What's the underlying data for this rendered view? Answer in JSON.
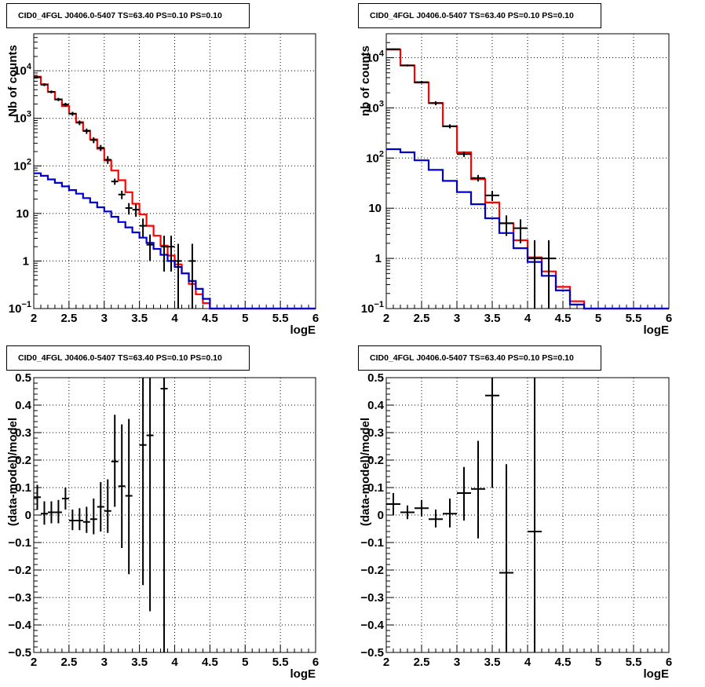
{
  "colors": {
    "data": "#000000",
    "total_model": "#ff0000",
    "background_model": "#0000cc",
    "grid": "#000000"
  },
  "chart_data": [
    {
      "type": "line",
      "title": "CID0_4FGL J0406.0-5407 TS=63.40 PS=0.10 PS=0.10",
      "xlabel": "logE",
      "ylabel": "Nb of counts",
      "xlim": [
        2,
        6
      ],
      "ylim": [
        0.1,
        60000
      ],
      "y_scale": "log",
      "grid": true,
      "x_ticks": [
        "2",
        "2.5",
        "3",
        "3.5",
        "4",
        "4.5",
        "5",
        "5.5",
        "6"
      ],
      "y_ticks": [
        {
          "value": 0.1,
          "label": "10",
          "exp": "−1"
        },
        {
          "value": 1,
          "label": "1",
          "exp": ""
        },
        {
          "value": 10,
          "label": "10",
          "exp": ""
        },
        {
          "value": 100,
          "label": "10",
          "exp": "2"
        },
        {
          "value": 1000,
          "label": "10",
          "exp": "3"
        },
        {
          "value": 10000,
          "label": "10",
          "exp": "4"
        }
      ],
      "bin_edges": [
        2.0,
        2.1,
        2.2,
        2.3,
        2.4,
        2.5,
        2.6,
        2.7,
        2.8,
        2.9,
        3.0,
        3.1,
        3.2,
        3.3,
        3.4,
        3.5,
        3.6,
        3.7,
        3.8,
        3.9,
        4.0,
        4.1,
        4.2,
        4.3,
        4.4,
        4.5,
        4.6,
        4.7,
        4.8,
        4.9,
        5.0,
        5.1,
        5.2,
        5.3,
        5.4,
        5.5,
        5.6,
        5.7,
        5.8,
        5.9,
        6.0
      ],
      "series": [
        {
          "values": [
            7500,
            5200,
            3600,
            2500,
            1800,
            1250,
            830,
            550,
            360,
            230,
            130,
            80,
            50,
            28,
            16,
            9.5,
            5.5,
            3.4,
            2.1,
            1.3,
            0.85,
            0.55,
            0.33,
            0.2,
            0.13,
            0.1,
            0.1,
            0.1,
            0.1,
            0.1,
            0.1,
            0.1,
            0.1,
            0.1,
            0.1,
            0.1,
            0.1,
            0.1,
            0.1,
            0.1
          ]
        },
        {
          "values": [
            70,
            62,
            52,
            44,
            37,
            31,
            26,
            21,
            17,
            13.5,
            11,
            8.5,
            6.6,
            5.1,
            4,
            3.1,
            2.4,
            1.8,
            1.35,
            1,
            0.75,
            0.55,
            0.38,
            0.26,
            0.16,
            0.1,
            0.1,
            0.1,
            0.1,
            0.1,
            0.1,
            0.1,
            0.1,
            0.1,
            0.1,
            0.1,
            0.1,
            0.1,
            0.1,
            0.1
          ]
        }
      ],
      "data_points": [
        {
          "x": 2.05,
          "y": 7300,
          "lo": 6900,
          "hi": 7700
        },
        {
          "x": 2.15,
          "y": 5100,
          "lo": 4750,
          "hi": 5450
        },
        {
          "x": 2.25,
          "y": 3600,
          "lo": 3350,
          "hi": 3850
        },
        {
          "x": 2.35,
          "y": 2500,
          "lo": 2300,
          "hi": 2700
        },
        {
          "x": 2.45,
          "y": 1950,
          "lo": 1780,
          "hi": 2120
        },
        {
          "x": 2.55,
          "y": 1250,
          "lo": 1130,
          "hi": 1370
        },
        {
          "x": 2.65,
          "y": 810,
          "lo": 720,
          "hi": 900
        },
        {
          "x": 2.75,
          "y": 540,
          "lo": 470,
          "hi": 610
        },
        {
          "x": 2.85,
          "y": 350,
          "lo": 300,
          "hi": 400
        },
        {
          "x": 2.95,
          "y": 240,
          "lo": 205,
          "hi": 275
        },
        {
          "x": 3.05,
          "y": 135,
          "lo": 110,
          "hi": 160
        },
        {
          "x": 3.15,
          "y": 47,
          "lo": 40,
          "hi": 54
        },
        {
          "x": 3.25,
          "y": 25,
          "lo": 20,
          "hi": 30
        },
        {
          "x": 3.35,
          "y": 13,
          "lo": 9.5,
          "hi": 16.5
        },
        {
          "x": 3.45,
          "y": 12,
          "lo": 8.5,
          "hi": 15.5
        },
        {
          "x": 3.55,
          "y": 5.5,
          "lo": 3.2,
          "hi": 7.8
        },
        {
          "x": 3.65,
          "y": 2.2,
          "lo": 1,
          "hi": 3.6
        },
        {
          "x": 3.85,
          "y": 2,
          "lo": 0.6,
          "hi": 3.4
        },
        {
          "x": 3.95,
          "y": 2,
          "lo": 0.6,
          "hi": 3.4
        },
        {
          "x": 4.05,
          "y": 1,
          "lo": 0.1,
          "hi": 2.3
        },
        {
          "x": 4.25,
          "y": 1,
          "lo": 0.1,
          "hi": 2.3
        }
      ]
    },
    {
      "type": "line",
      "title": "CID0_4FGL J0406.0-5407 TS=63.40 PS=0.10 PS=0.10",
      "xlabel": "logE",
      "ylabel": "nb of counts",
      "xlim": [
        2,
        6
      ],
      "ylim": [
        0.1,
        30000
      ],
      "y_scale": "log",
      "grid": true,
      "x_ticks": [
        "2",
        "2.5",
        "3",
        "3.5",
        "4",
        "4.5",
        "5",
        "5.5",
        "6"
      ],
      "y_ticks": [
        {
          "value": 0.1,
          "label": "10",
          "exp": "−1"
        },
        {
          "value": 1,
          "label": "1",
          "exp": ""
        },
        {
          "value": 10,
          "label": "10",
          "exp": ""
        },
        {
          "value": 100,
          "label": "10",
          "exp": "2"
        },
        {
          "value": 1000,
          "label": "10",
          "exp": "3"
        },
        {
          "value": 10000,
          "label": "10",
          "exp": "4"
        }
      ],
      "bin_edges": [
        2.0,
        2.2,
        2.4,
        2.6,
        2.8,
        3.0,
        3.2,
        3.4,
        3.6,
        3.8,
        4.0,
        4.2,
        4.4,
        4.6,
        4.8,
        5.0,
        5.2,
        5.4,
        5.6,
        5.8,
        6.0
      ],
      "series": [
        {
          "values": [
            14500,
            7000,
            3200,
            1250,
            430,
            130,
            38,
            13,
            5,
            2.3,
            1.05,
            0.55,
            0.27,
            0.14,
            0.1,
            0.1,
            0.1,
            0.1,
            0.1,
            0.1
          ]
        },
        {
          "values": [
            150,
            130,
            90,
            58,
            35,
            21,
            12,
            6.3,
            3.2,
            1.6,
            0.85,
            0.45,
            0.23,
            0.12,
            0.1,
            0.1,
            0.1,
            0.1,
            0.1,
            0.1
          ]
        }
      ],
      "data_points": [
        {
          "x": 2.1,
          "y": 14800,
          "lo": 14300,
          "hi": 15300
        },
        {
          "x": 2.3,
          "y": 7000,
          "lo": 6700,
          "hi": 7300
        },
        {
          "x": 2.5,
          "y": 3250,
          "lo": 3050,
          "hi": 3450
        },
        {
          "x": 2.7,
          "y": 1240,
          "lo": 1130,
          "hi": 1350
        },
        {
          "x": 2.9,
          "y": 430,
          "lo": 390,
          "hi": 470
        },
        {
          "x": 3.1,
          "y": 120,
          "lo": 105,
          "hi": 135
        },
        {
          "x": 3.3,
          "y": 40,
          "lo": 34,
          "hi": 46
        },
        {
          "x": 3.5,
          "y": 18,
          "lo": 14,
          "hi": 22
        },
        {
          "x": 3.7,
          "y": 5,
          "lo": 2.8,
          "hi": 7.2
        },
        {
          "x": 3.9,
          "y": 4,
          "lo": 2,
          "hi": 6
        },
        {
          "x": 4.1,
          "y": 1,
          "lo": 0.1,
          "hi": 2.3
        },
        {
          "x": 4.3,
          "y": 1,
          "lo": 0.1,
          "hi": 2.3
        }
      ]
    },
    {
      "type": "scatter",
      "title": "CID0_4FGL J0406.0-5407 TS=63.40 PS=0.10 PS=0.10",
      "xlabel": "logE",
      "ylabel": "(data-model)/model",
      "xlim": [
        2,
        6
      ],
      "ylim": [
        -0.5,
        0.5
      ],
      "y_scale": "linear",
      "grid": true,
      "x_ticks": [
        "2",
        "2.5",
        "3",
        "3.5",
        "4",
        "4.5",
        "5",
        "5.5",
        "6"
      ],
      "y_ticks": [
        "−0.5",
        "−0.4",
        "−0.3",
        "−0.2",
        "−0.1",
        "0",
        "0.1",
        "0.2",
        "0.3",
        "0.4",
        "0.5"
      ],
      "x_half_width": 0.05,
      "data_points": [
        {
          "x": 2.05,
          "y": 0.065,
          "lo": 0.02,
          "hi": 0.11
        },
        {
          "x": 2.15,
          "y": 0.005,
          "lo": -0.035,
          "hi": 0.05
        },
        {
          "x": 2.25,
          "y": 0.01,
          "lo": -0.03,
          "hi": 0.05
        },
        {
          "x": 2.35,
          "y": 0.01,
          "lo": -0.03,
          "hi": 0.055
        },
        {
          "x": 2.45,
          "y": 0.06,
          "lo": 0.02,
          "hi": 0.1
        },
        {
          "x": 2.55,
          "y": -0.02,
          "lo": -0.055,
          "hi": 0.02
        },
        {
          "x": 2.65,
          "y": -0.02,
          "lo": -0.055,
          "hi": 0.025
        },
        {
          "x": 2.75,
          "y": -0.025,
          "lo": -0.065,
          "hi": 0.03
        },
        {
          "x": 2.85,
          "y": -0.015,
          "lo": -0.07,
          "hi": 0.06
        },
        {
          "x": 2.95,
          "y": 0.03,
          "lo": -0.06,
          "hi": 0.12
        },
        {
          "x": 3.05,
          "y": 0.015,
          "lo": -0.065,
          "hi": 0.13
        },
        {
          "x": 3.15,
          "y": 0.195,
          "lo": 0.03,
          "hi": 0.365
        },
        {
          "x": 3.25,
          "y": 0.105,
          "lo": -0.12,
          "hi": 0.33
        },
        {
          "x": 3.35,
          "y": 0.07,
          "lo": -0.215,
          "hi": 0.35
        },
        {
          "x": 3.55,
          "y": 0.255,
          "lo": -0.255,
          "hi": 0.5
        },
        {
          "x": 3.65,
          "y": 0.29,
          "lo": -0.35,
          "hi": 0.5
        },
        {
          "x": 3.85,
          "y": 0.46,
          "lo": -0.5,
          "hi": 0.5
        }
      ]
    },
    {
      "type": "scatter",
      "title": "CID0_4FGL J0406.0-5407 TS=63.40 PS=0.10 PS=0.10",
      "xlabel": "logE",
      "ylabel": "(data-model)/model",
      "xlim": [
        2,
        6
      ],
      "ylim": [
        -0.5,
        0.5
      ],
      "y_scale": "linear",
      "grid": true,
      "x_ticks": [
        "2",
        "2.5",
        "3",
        "3.5",
        "4",
        "4.5",
        "5",
        "5.5",
        "6"
      ],
      "y_ticks": [
        "−0.5",
        "−0.4",
        "−0.3",
        "−0.2",
        "−0.1",
        "0",
        "0.1",
        "0.2",
        "0.3",
        "0.4",
        "0.5"
      ],
      "x_half_width": 0.1,
      "data_points": [
        {
          "x": 2.1,
          "y": 0.04,
          "lo": 0.0,
          "hi": 0.08
        },
        {
          "x": 2.3,
          "y": 0.01,
          "lo": -0.015,
          "hi": 0.035
        },
        {
          "x": 2.5,
          "y": 0.025,
          "lo": -0.005,
          "hi": 0.055
        },
        {
          "x": 2.7,
          "y": -0.015,
          "lo": -0.045,
          "hi": 0.02
        },
        {
          "x": 2.9,
          "y": 0.005,
          "lo": -0.045,
          "hi": 0.06
        },
        {
          "x": 3.1,
          "y": 0.08,
          "lo": -0.02,
          "hi": 0.175
        },
        {
          "x": 3.3,
          "y": 0.095,
          "lo": -0.085,
          "hi": 0.27
        },
        {
          "x": 3.5,
          "y": 0.435,
          "lo": 0.1,
          "hi": 0.5
        },
        {
          "x": 3.7,
          "y": -0.21,
          "lo": -0.5,
          "hi": 0.185
        },
        {
          "x": 4.1,
          "y": -0.06,
          "lo": -0.5,
          "hi": 0.5
        }
      ]
    }
  ]
}
